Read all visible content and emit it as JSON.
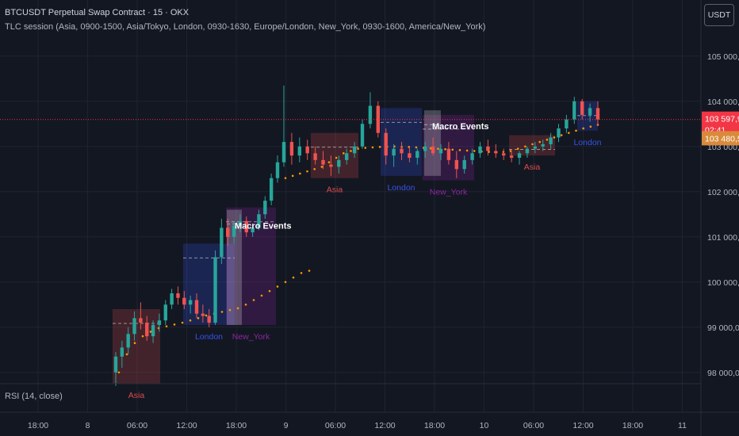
{
  "header": {
    "title": "BTCUSDT Perpetual Swap Contract · 15 · OKX",
    "indicator": "TLC session (Asia, 0900-1500, Asia/Tokyo, London, 0930-1630, Europe/London, New_York, 0930-1600, America/New_York)"
  },
  "currency_button": "USDT",
  "rsi_label": "RSI (14, close)",
  "price_tags": {
    "last": "103 597,9",
    "countdown": "02:41",
    "secondary": "103 480,5"
  },
  "colors": {
    "background": "#131722",
    "up": "#26a69a",
    "down": "#ef5350",
    "asia": "#ef5350",
    "london": "#3d5afe",
    "new_york": "#9c27b0",
    "orange_line": "#ff9800",
    "price_line": "#f23645",
    "secondary_tag": "#d98a3a"
  },
  "chart_data": {
    "type": "candlestick",
    "y_axis": {
      "ticks": [
        "98 000,0",
        "99 000,0",
        "100 000,0",
        "101 000,0",
        "102 000,0",
        "103 000,0",
        "104 000,0",
        "105 000,0"
      ],
      "range": [
        97750,
        105400
      ]
    },
    "x_axis": {
      "ticks": [
        "18:00",
        "8",
        "06:00",
        "12:00",
        "18:00",
        "9",
        "06:00",
        "12:00",
        "18:00",
        "10",
        "06:00",
        "12:00",
        "18:00",
        "11"
      ]
    },
    "last_price": 103597.9,
    "secondary_price": 103480.5,
    "candles": [
      [
        98000,
        98450,
        97700,
        98350
      ],
      [
        98350,
        98700,
        98100,
        98550
      ],
      [
        98550,
        99000,
        98400,
        98850
      ],
      [
        98850,
        99350,
        98700,
        99200
      ],
      [
        99200,
        99550,
        98950,
        99100
      ],
      [
        99100,
        99250,
        98700,
        98800
      ],
      [
        98800,
        99150,
        98650,
        99050
      ],
      [
        99050,
        99300,
        98900,
        99150
      ],
      [
        99150,
        99600,
        99050,
        99500
      ],
      [
        99500,
        99850,
        99400,
        99750
      ],
      [
        99750,
        99900,
        99500,
        99650
      ],
      [
        99650,
        99800,
        99400,
        99500
      ],
      [
        99500,
        99700,
        99300,
        99600
      ],
      [
        99600,
        99750,
        99200,
        99300
      ],
      [
        99300,
        99500,
        99100,
        99250
      ],
      [
        99250,
        99400,
        99000,
        99100
      ],
      [
        99100,
        100700,
        99050,
        100550
      ],
      [
        100550,
        101400,
        100400,
        101200
      ],
      [
        101200,
        101400,
        100800,
        101000
      ],
      [
        101000,
        101350,
        100850,
        101250
      ],
      [
        101250,
        101500,
        101100,
        101350
      ],
      [
        101350,
        101450,
        101000,
        101100
      ],
      [
        101100,
        101300,
        101000,
        101200
      ],
      [
        101200,
        101600,
        101150,
        101500
      ],
      [
        101500,
        101900,
        101400,
        101800
      ],
      [
        101800,
        102400,
        101700,
        102300
      ],
      [
        102300,
        102800,
        102200,
        102650
      ],
      [
        102650,
        104350,
        102550,
        103100
      ],
      [
        103100,
        103300,
        102600,
        102800
      ],
      [
        102800,
        103200,
        102650,
        103000
      ],
      [
        103000,
        103150,
        102700,
        102850
      ],
      [
        102850,
        103000,
        102600,
        102700
      ],
      [
        102700,
        102900,
        102500,
        102600
      ],
      [
        102600,
        102800,
        102350,
        102550
      ],
      [
        102550,
        102800,
        102400,
        102700
      ],
      [
        102700,
        102950,
        102600,
        102850
      ],
      [
        102850,
        103100,
        102750,
        103000
      ],
      [
        103000,
        103600,
        102950,
        103500
      ],
      [
        103500,
        104200,
        103400,
        103900
      ],
      [
        103900,
        104000,
        103200,
        103300
      ],
      [
        103300,
        103400,
        102600,
        102800
      ],
      [
        102800,
        103050,
        102550,
        102950
      ],
      [
        102950,
        103100,
        102700,
        102850
      ],
      [
        102850,
        103000,
        102650,
        102750
      ],
      [
        102750,
        102950,
        102600,
        102900
      ],
      [
        102900,
        103100,
        102750,
        103000
      ],
      [
        103000,
        103200,
        102800,
        102850
      ],
      [
        102850,
        103050,
        102700,
        102950
      ],
      [
        102950,
        103100,
        102600,
        102700
      ],
      [
        102700,
        102900,
        102300,
        102500
      ],
      [
        102500,
        102800,
        102400,
        102700
      ],
      [
        102700,
        102950,
        102600,
        102850
      ],
      [
        102850,
        103100,
        102750,
        103000
      ],
      [
        103000,
        103150,
        102800,
        102900
      ],
      [
        102900,
        103050,
        102750,
        102850
      ],
      [
        102850,
        102950,
        102700,
        102800
      ],
      [
        102800,
        102900,
        102650,
        102750
      ],
      [
        102750,
        102900,
        102600,
        102850
      ],
      [
        102850,
        103000,
        102750,
        102950
      ],
      [
        102950,
        103100,
        102850,
        103000
      ],
      [
        103000,
        103150,
        102900,
        103050
      ],
      [
        103050,
        103300,
        102950,
        103200
      ],
      [
        103200,
        103500,
        103100,
        103400
      ],
      [
        103400,
        103700,
        103300,
        103600
      ],
      [
        103600,
        104100,
        103500,
        104000
      ],
      [
        104000,
        104050,
        103600,
        103700
      ],
      [
        103700,
        103950,
        103550,
        103850
      ],
      [
        103850,
        104000,
        103450,
        103597.9
      ]
    ],
    "orange_series": [
      [
        98000,
        98400,
        98650,
        98800,
        98900,
        98980,
        99020,
        99060,
        99100,
        99150,
        99200,
        99260,
        99300,
        99340,
        99380,
        99420,
        99500,
        99600,
        99700,
        99800,
        99900,
        100000,
        100100,
        100200,
        100250
      ],
      [
        102300,
        102350,
        102400,
        102450,
        102500,
        102550,
        102650,
        102750,
        102850,
        102900,
        102950,
        102970,
        102980,
        102990,
        102995,
        103000,
        102990,
        102990,
        102980,
        102970,
        102960,
        102950,
        102940,
        102930,
        102920,
        102910,
        102900,
        102890,
        102880,
        102870,
        102880,
        102900,
        102950,
        103000,
        103050,
        103100,
        103150,
        103200,
        103250,
        103300,
        103350,
        103400,
        103440,
        103480
      ]
    ],
    "sessions": [
      {
        "name": "Asia",
        "hi": 99400,
        "lo": 97750
      },
      {
        "name": "London",
        "hi": 100850,
        "lo": 99050
      },
      {
        "name": "New_York",
        "hi": 101650,
        "lo": 99050
      },
      {
        "name": "Macro Events",
        "hi": 101600,
        "lo": 99050
      },
      {
        "name": "Asia",
        "hi": 103300,
        "lo": 102300
      },
      {
        "name": "London",
        "hi": 103850,
        "lo": 102350
      },
      {
        "name": "New_York",
        "hi": 103700,
        "lo": 102250
      },
      {
        "name": "Macro Events",
        "hi": 103800,
        "lo": 102350
      },
      {
        "name": "Asia",
        "hi": 103250,
        "lo": 102800
      },
      {
        "name": "London",
        "hi": 104000,
        "lo": 103350
      }
    ]
  }
}
